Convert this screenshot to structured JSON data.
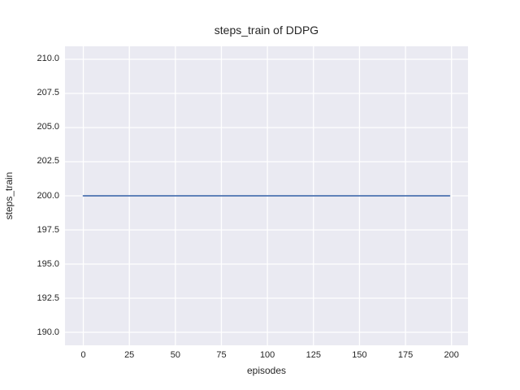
{
  "style": {
    "figure_bg": "#ffffff",
    "plot_bg": "#eaeaf2",
    "grid_color": "#ffffff",
    "text_color": "#262626",
    "line_color": "#4c72b0"
  },
  "chart_data": {
    "type": "line",
    "title": "steps_train of DDPG",
    "xlabel": "episodes",
    "ylabel": "steps_train",
    "grid": true,
    "legend": null,
    "xlim": [
      -9.95,
      208.95
    ],
    "ylim": [
      189.05,
      210.95
    ],
    "x_ticks": [
      0,
      25,
      50,
      75,
      100,
      125,
      150,
      175,
      200
    ],
    "x_tick_labels": [
      "0",
      "25",
      "50",
      "75",
      "100",
      "125",
      "150",
      "175",
      "200"
    ],
    "y_ticks": [
      190.0,
      192.5,
      195.0,
      197.5,
      200.0,
      202.5,
      205.0,
      207.5,
      210.0
    ],
    "y_tick_labels": [
      "190.0",
      "192.5",
      "195.0",
      "197.5",
      "200.0",
      "202.5",
      "205.0",
      "207.5",
      "210.0"
    ],
    "series": [
      {
        "name": "steps_train",
        "color": "#4c72b0",
        "x": [
          0,
          199
        ],
        "y": [
          200,
          200
        ]
      }
    ]
  }
}
